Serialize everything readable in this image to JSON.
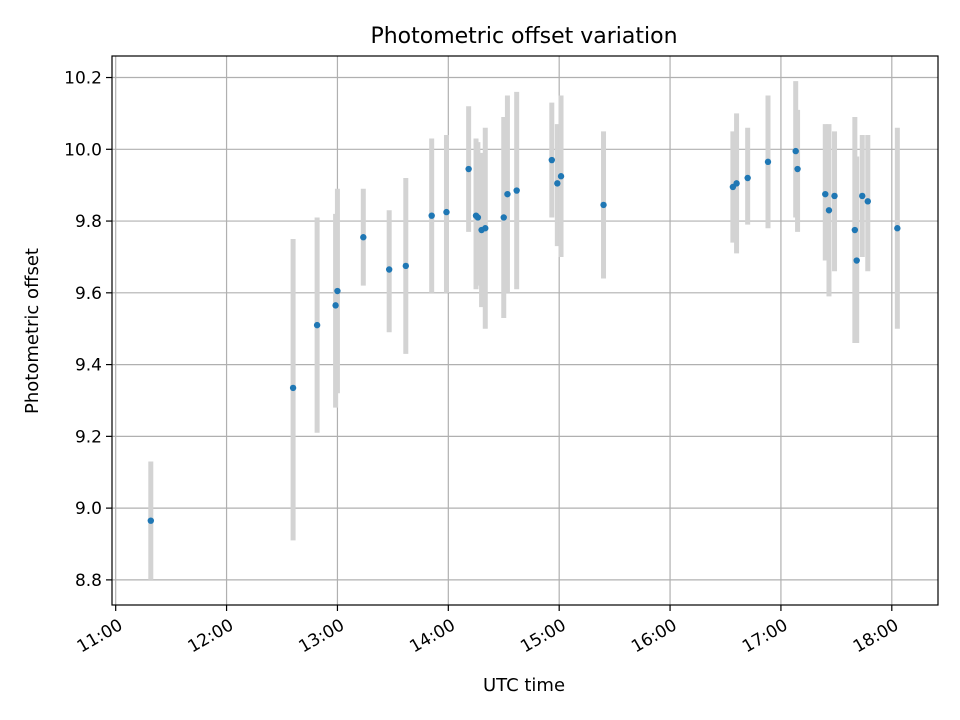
{
  "chart_data": {
    "type": "scatter",
    "title": "Photometric offset variation",
    "xlabel": "UTC time",
    "ylabel": "Photometric offset",
    "xlim": [
      "10:58",
      "18:25"
    ],
    "ylim": [
      8.73,
      10.26
    ],
    "x_ticks": [
      "11:00",
      "12:00",
      "13:00",
      "14:00",
      "15:00",
      "16:00",
      "17:00",
      "18:00"
    ],
    "y_ticks": [
      8.8,
      9.0,
      9.2,
      9.4,
      9.6,
      9.8,
      10.0,
      10.2
    ],
    "y_tick_labels": [
      "8.8",
      "9.0",
      "9.2",
      "9.4",
      "9.6",
      "9.8",
      "10.0",
      "10.2"
    ],
    "grid": true,
    "marker_color": "#1f77b4",
    "errorbar_color": "#d3d3d3",
    "points": [
      {
        "t": "11:19",
        "y": 8.965,
        "lo": 8.8,
        "hi": 9.13
      },
      {
        "t": "12:36",
        "y": 9.335,
        "lo": 8.91,
        "hi": 9.75
      },
      {
        "t": "12:49",
        "y": 9.51,
        "lo": 9.21,
        "hi": 9.81
      },
      {
        "t": "12:59",
        "y": 9.565,
        "lo": 9.28,
        "hi": 9.82
      },
      {
        "t": "13:00",
        "y": 9.605,
        "lo": 9.32,
        "hi": 9.89
      },
      {
        "t": "13:14",
        "y": 9.755,
        "lo": 9.62,
        "hi": 9.89
      },
      {
        "t": "13:28",
        "y": 9.665,
        "lo": 9.49,
        "hi": 9.83
      },
      {
        "t": "13:37",
        "y": 9.675,
        "lo": 9.43,
        "hi": 9.92
      },
      {
        "t": "13:51",
        "y": 9.815,
        "lo": 9.6,
        "hi": 10.03
      },
      {
        "t": "13:59",
        "y": 9.825,
        "lo": 9.6,
        "hi": 10.04
      },
      {
        "t": "14:11",
        "y": 9.945,
        "lo": 9.77,
        "hi": 10.12
      },
      {
        "t": "14:15",
        "y": 9.815,
        "lo": 9.61,
        "hi": 10.03
      },
      {
        "t": "14:16",
        "y": 9.81,
        "lo": 9.62,
        "hi": 10.02
      },
      {
        "t": "14:18",
        "y": 9.775,
        "lo": 9.56,
        "hi": 9.99
      },
      {
        "t": "14:20",
        "y": 9.78,
        "lo": 9.5,
        "hi": 10.06
      },
      {
        "t": "14:30",
        "y": 9.81,
        "lo": 9.53,
        "hi": 10.09
      },
      {
        "t": "14:32",
        "y": 9.875,
        "lo": 9.6,
        "hi": 10.15
      },
      {
        "t": "14:37",
        "y": 9.885,
        "lo": 9.61,
        "hi": 10.16
      },
      {
        "t": "14:56",
        "y": 9.97,
        "lo": 9.81,
        "hi": 10.13
      },
      {
        "t": "14:59",
        "y": 9.905,
        "lo": 9.73,
        "hi": 10.07
      },
      {
        "t": "15:01",
        "y": 9.925,
        "lo": 9.7,
        "hi": 10.15
      },
      {
        "t": "15:24",
        "y": 9.845,
        "lo": 9.64,
        "hi": 10.05
      },
      {
        "t": "16:34",
        "y": 9.895,
        "lo": 9.74,
        "hi": 10.05
      },
      {
        "t": "16:36",
        "y": 9.905,
        "lo": 9.71,
        "hi": 10.1
      },
      {
        "t": "16:42",
        "y": 9.92,
        "lo": 9.79,
        "hi": 10.06
      },
      {
        "t": "16:53",
        "y": 9.965,
        "lo": 9.78,
        "hi": 10.15
      },
      {
        "t": "17:08",
        "y": 9.995,
        "lo": 9.81,
        "hi": 10.19
      },
      {
        "t": "17:09",
        "y": 9.945,
        "lo": 9.77,
        "hi": 10.11
      },
      {
        "t": "17:24",
        "y": 9.875,
        "lo": 9.69,
        "hi": 10.07
      },
      {
        "t": "17:26",
        "y": 9.83,
        "lo": 9.59,
        "hi": 10.07
      },
      {
        "t": "17:29",
        "y": 9.87,
        "lo": 9.66,
        "hi": 10.05
      },
      {
        "t": "17:40",
        "y": 9.775,
        "lo": 9.46,
        "hi": 10.09
      },
      {
        "t": "17:41",
        "y": 9.69,
        "lo": 9.46,
        "hi": 9.98
      },
      {
        "t": "17:44",
        "y": 9.87,
        "lo": 9.7,
        "hi": 10.04
      },
      {
        "t": "17:47",
        "y": 9.855,
        "lo": 9.66,
        "hi": 10.04
      },
      {
        "t": "18:03",
        "y": 9.78,
        "lo": 9.5,
        "hi": 10.06
      }
    ]
  }
}
